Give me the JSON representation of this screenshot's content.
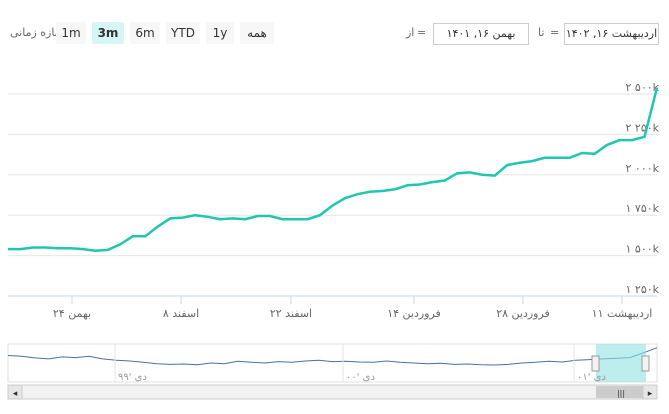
{
  "toolbar": {
    "zoom_label": "بازه زمانی",
    "buttons": [
      "1m",
      "3m",
      "6m",
      "YTD",
      "1y",
      "همه"
    ],
    "active": "3m",
    "from_label": "از",
    "from_value": "بهمن ۱۶, ۱۴۰۱",
    "to_label": "تا",
    "to_value": "اردیبهشت ۱۶, ۱۴۰۲",
    "eq": "="
  },
  "colors": {
    "series": "#1fc7b0",
    "grid": "#e6e6e6",
    "navigator_fill": "#8fe3e3",
    "navigator_line": "#4a6fa5"
  },
  "chart_data": {
    "type": "line",
    "title": "",
    "x_labels": [
      "بهمن ۲۴",
      "اسفند ۸",
      "اسفند ۲۲",
      "فروردین ۱۴",
      "فروردین ۲۸",
      "اردیبهشت ۱۱"
    ],
    "y_ticks": [
      "۱ ۲۵۰k",
      "۱ ۵۰۰k",
      "۱ ۷۵۰k",
      "۲ ۰۰۰k",
      "۲ ۲۵۰k",
      "۲ ۵۰۰k"
    ],
    "y_tick_values": [
      1250000,
      1500000,
      1750000,
      2000000,
      2250000,
      2500000
    ],
    "ylim": [
      1250000,
      2500000
    ],
    "series": [
      {
        "values": [
          1540000,
          1540000,
          1550000,
          1550000,
          1545000,
          1545000,
          1540000,
          1530000,
          1535000,
          1570000,
          1620000,
          1620000,
          1680000,
          1730000,
          1735000,
          1750000,
          1740000,
          1725000,
          1730000,
          1725000,
          1745000,
          1745000,
          1725000,
          1725000,
          1725000,
          1750000,
          1810000,
          1855000,
          1880000,
          1895000,
          1900000,
          1910000,
          1935000,
          1940000,
          1955000,
          1965000,
          2010000,
          2015000,
          2000000,
          1995000,
          2060000,
          2075000,
          2085000,
          2105000,
          2105000,
          2105000,
          2135000,
          2130000,
          2185000,
          2215000,
          2215000,
          2235000,
          2540000
        ]
      }
    ],
    "navigator_labels": [
      "دی '۹۹",
      "دی '۰۰",
      "دی '۰۱"
    ],
    "navigator_values": [
      0.72,
      0.7,
      0.65,
      0.62,
      0.68,
      0.66,
      0.7,
      0.62,
      0.58,
      0.56,
      0.52,
      0.48,
      0.46,
      0.47,
      0.45,
      0.5,
      0.48,
      0.55,
      0.52,
      0.5,
      0.54,
      0.52,
      0.56,
      0.58,
      0.54,
      0.55,
      0.53,
      0.52,
      0.56,
      0.52,
      0.5,
      0.48,
      0.49,
      0.46,
      0.47,
      0.45,
      0.44,
      0.46,
      0.5,
      0.52,
      0.55,
      0.53,
      0.58,
      0.6,
      0.62,
      0.64,
      0.66,
      0.8,
      0.95
    ]
  }
}
